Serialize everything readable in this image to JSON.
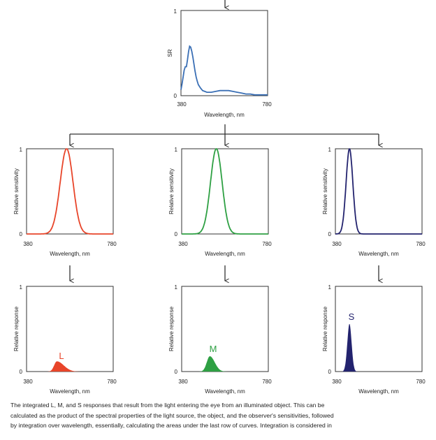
{
  "source_panel": {
    "ylabel": "SR",
    "xlabel": "Wavelength, nm",
    "x_ticks": [
      "380",
      "780"
    ],
    "y_ticks": [
      "1",
      "0"
    ],
    "color": "#3a6fb5",
    "x": [
      380,
      385,
      390,
      395,
      400,
      405,
      410,
      415,
      420,
      425,
      430,
      435,
      440,
      445,
      450,
      455,
      460,
      470,
      480,
      490,
      500,
      520,
      540,
      560,
      580,
      600,
      620,
      640,
      660,
      680,
      700,
      720,
      740,
      760,
      780
    ],
    "y": [
      0.07,
      0.14,
      0.22,
      0.3,
      0.34,
      0.34,
      0.42,
      0.52,
      0.58,
      0.57,
      0.52,
      0.45,
      0.37,
      0.29,
      0.22,
      0.17,
      0.13,
      0.09,
      0.06,
      0.05,
      0.04,
      0.04,
      0.05,
      0.06,
      0.06,
      0.06,
      0.05,
      0.04,
      0.03,
      0.02,
      0.02,
      0.01,
      0.01,
      0.01,
      0.01
    ]
  },
  "sensitivity_panels": [
    {
      "id": "L",
      "ylabel": "Relative sensitivity",
      "xlabel": "Wavelength, nm",
      "x_ticks": [
        "380",
        "780"
      ],
      "y_ticks": [
        "1",
        "0"
      ],
      "color": "#e8452a",
      "peak_nm": 565,
      "width_nm": 42
    },
    {
      "id": "M",
      "ylabel": "Relative sensitivity",
      "xlabel": "Wavelength, nm",
      "x_ticks": [
        "380",
        "780"
      ],
      "y_ticks": [
        "1",
        "0"
      ],
      "color": "#2ea043",
      "peak_nm": 540,
      "width_nm": 38
    },
    {
      "id": "S",
      "ylabel": "Relative sensitivity",
      "xlabel": "Wavelength, nm",
      "x_ticks": [
        "380",
        "780"
      ],
      "y_ticks": [
        "1",
        "0"
      ],
      "color": "#23236e",
      "peak_nm": 445,
      "width_nm": 22
    }
  ],
  "response_panels": [
    {
      "id": "L",
      "label": "L",
      "ylabel": "Relative response",
      "xlabel": "Wavelength, nm",
      "x_ticks": [
        "380",
        "780"
      ],
      "y_ticks": [
        "1",
        "0"
      ],
      "color": "#e8452a",
      "peak_nm": 520,
      "peak_value": 0.12
    },
    {
      "id": "M",
      "label": "M",
      "ylabel": "Relative response",
      "xlabel": "Wavelength, nm",
      "x_ticks": [
        "380",
        "780"
      ],
      "y_ticks": [
        "1",
        "0"
      ],
      "color": "#2ea043",
      "peak_nm": 510,
      "peak_value": 0.18
    },
    {
      "id": "S",
      "label": "S",
      "ylabel": "Relative response",
      "xlabel": "Wavelength, nm",
      "x_ticks": [
        "380",
        "780"
      ],
      "y_ticks": [
        "1",
        "0"
      ],
      "color": "#23236e",
      "peak_nm": 445,
      "peak_value": 0.56
    }
  ],
  "caption": {
    "line1": "The integrated L, M, and S responses that result from the light entering the eye from an illuminated object. This can be",
    "line2": "calculated as the product of the spectral properties of the light source, the object, and the observer's sensitivities, followed",
    "line3": "by integration over wavelength, essentially, calculating the areas under the last row of curves. Integration is considered in"
  }
}
